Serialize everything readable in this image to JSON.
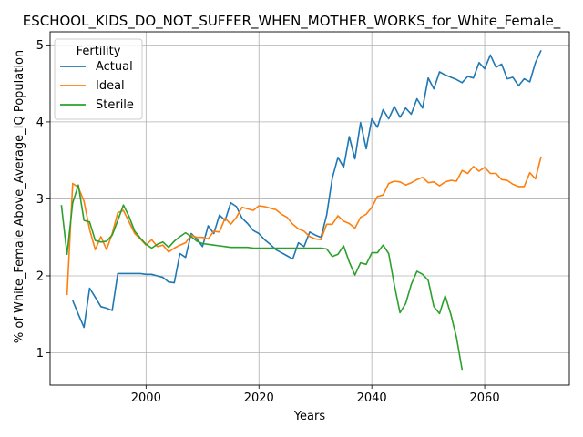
{
  "chart_data": {
    "type": "line",
    "title": "ESCHOOL_KIDS_DO_NOT_SUFFER_WHEN_MOTHER_WORKS_for_White_Female_",
    "xlabel": "Years",
    "ylabel": "% of White_Female Above_Average_IQ Population",
    "xlim": [
      1983,
      2075
    ],
    "ylim": [
      0.58,
      5.17
    ],
    "xticks": [
      2000,
      2020,
      2040,
      2060
    ],
    "yticks": [
      1,
      2,
      3,
      4,
      5
    ],
    "grid": true,
    "legend": {
      "title": "Fertility",
      "placement": "top-left"
    },
    "series": [
      {
        "name": "Actual",
        "color": "#1f77b4",
        "x": [
          1987,
          1988,
          1989,
          1990,
          1991,
          1992,
          1993,
          1994,
          1995,
          1996,
          1997,
          1998,
          1999,
          2000,
          2001,
          2002,
          2003,
          2004,
          2005,
          2006,
          2007,
          2008,
          2009,
          2010,
          2011,
          2012,
          2013,
          2014,
          2015,
          2016,
          2017,
          2018,
          2019,
          2020,
          2021,
          2022,
          2023,
          2024,
          2025,
          2026,
          2027,
          2028,
          2029,
          2030,
          2031,
          2032,
          2033,
          2034,
          2035,
          2036,
          2037,
          2038,
          2039,
          2040,
          2041,
          2042,
          2043,
          2044,
          2045,
          2046,
          2047,
          2048,
          2049,
          2050,
          2051,
          2052,
          2053,
          2054,
          2055,
          2056,
          2057,
          2058,
          2059,
          2060,
          2061,
          2062,
          2063,
          2064,
          2065,
          2066,
          2067,
          2068,
          2069,
          2070
        ],
        "values": [
          1.68,
          1.5,
          1.33,
          1.84,
          1.72,
          1.6,
          1.58,
          1.55,
          2.03,
          2.03,
          2.03,
          2.03,
          2.03,
          2.02,
          2.02,
          2.0,
          1.98,
          1.92,
          1.91,
          2.29,
          2.24,
          2.55,
          2.48,
          2.38,
          2.65,
          2.55,
          2.79,
          2.72,
          2.95,
          2.9,
          2.75,
          2.68,
          2.59,
          2.55,
          2.47,
          2.41,
          2.34,
          2.3,
          2.26,
          2.22,
          2.43,
          2.38,
          2.57,
          2.53,
          2.5,
          2.79,
          3.27,
          3.54,
          3.41,
          3.81,
          3.52,
          3.99,
          3.65,
          4.04,
          3.93,
          4.16,
          4.04,
          4.2,
          4.06,
          4.18,
          4.1,
          4.3,
          4.18,
          4.57,
          4.43,
          4.65,
          4.61,
          4.58,
          4.55,
          4.51,
          4.59,
          4.57,
          4.77,
          4.69,
          4.87,
          4.71,
          4.75,
          4.56,
          4.58,
          4.47,
          4.56,
          4.52,
          4.77,
          4.93
        ]
      },
      {
        "name": "Ideal",
        "color": "#ff7f0e",
        "x": [
          1986,
          1987,
          1988,
          1989,
          1990,
          1991,
          1992,
          1993,
          1994,
          1995,
          1996,
          1997,
          1998,
          1999,
          2000,
          2001,
          2002,
          2003,
          2004,
          2005,
          2006,
          2007,
          2008,
          2009,
          2010,
          2011,
          2012,
          2013,
          2014,
          2015,
          2016,
          2017,
          2018,
          2019,
          2020,
          2021,
          2022,
          2023,
          2024,
          2025,
          2026,
          2027,
          2028,
          2029,
          2030,
          2031,
          2032,
          2033,
          2034,
          2035,
          2036,
          2037,
          2038,
          2039,
          2040,
          2041,
          2042,
          2043,
          2044,
          2045,
          2046,
          2047,
          2048,
          2049,
          2050,
          2051,
          2052,
          2053,
          2054,
          2055,
          2056,
          2057,
          2058,
          2059,
          2060,
          2061,
          2062,
          2063,
          2064,
          2065,
          2066,
          2067,
          2068,
          2069,
          2070
        ],
        "values": [
          1.75,
          3.2,
          3.15,
          2.97,
          2.6,
          2.34,
          2.51,
          2.34,
          2.55,
          2.82,
          2.85,
          2.7,
          2.55,
          2.48,
          2.4,
          2.47,
          2.38,
          2.4,
          2.31,
          2.36,
          2.4,
          2.43,
          2.53,
          2.5,
          2.5,
          2.48,
          2.58,
          2.57,
          2.75,
          2.67,
          2.76,
          2.89,
          2.87,
          2.85,
          2.91,
          2.9,
          2.88,
          2.86,
          2.8,
          2.76,
          2.67,
          2.61,
          2.58,
          2.51,
          2.48,
          2.47,
          2.67,
          2.67,
          2.78,
          2.71,
          2.68,
          2.62,
          2.76,
          2.8,
          2.89,
          3.03,
          3.05,
          3.2,
          3.23,
          3.22,
          3.18,
          3.21,
          3.25,
          3.28,
          3.21,
          3.22,
          3.17,
          3.22,
          3.24,
          3.23,
          3.37,
          3.33,
          3.42,
          3.36,
          3.41,
          3.33,
          3.33,
          3.25,
          3.24,
          3.19,
          3.16,
          3.16,
          3.34,
          3.26,
          3.55
        ]
      },
      {
        "name": "Sterile",
        "color": "#2ca02c",
        "x": [
          1985,
          1986,
          1987,
          1988,
          1989,
          1990,
          1991,
          1992,
          1993,
          1994,
          1995,
          1996,
          1997,
          1998,
          1999,
          2000,
          2001,
          2002,
          2003,
          2004,
          2005,
          2006,
          2007,
          2008,
          2009,
          2010,
          2011,
          2012,
          2013,
          2014,
          2015,
          2016,
          2017,
          2018,
          2019,
          2020,
          2021,
          2022,
          2023,
          2024,
          2025,
          2026,
          2027,
          2028,
          2029,
          2030,
          2031,
          2032,
          2033,
          2034,
          2035,
          2036,
          2037,
          2038,
          2039,
          2040,
          2041,
          2042,
          2043,
          2044,
          2045,
          2046,
          2047,
          2048,
          2049,
          2050,
          2051,
          2052,
          2053,
          2054,
          2055,
          2056
        ],
        "values": [
          2.92,
          2.28,
          2.95,
          3.18,
          2.72,
          2.7,
          2.46,
          2.44,
          2.45,
          2.53,
          2.72,
          2.92,
          2.77,
          2.58,
          2.49,
          2.41,
          2.36,
          2.41,
          2.44,
          2.37,
          2.45,
          2.51,
          2.56,
          2.51,
          2.45,
          2.42,
          2.41,
          2.4,
          2.39,
          2.38,
          2.37,
          2.37,
          2.37,
          2.37,
          2.36,
          2.36,
          2.36,
          2.36,
          2.36,
          2.36,
          2.36,
          2.36,
          2.36,
          2.36,
          2.36,
          2.36,
          2.36,
          2.35,
          2.25,
          2.28,
          2.39,
          2.18,
          2.01,
          2.17,
          2.15,
          2.3,
          2.3,
          2.4,
          2.29,
          1.88,
          1.52,
          1.64,
          1.89,
          2.06,
          2.02,
          1.94,
          1.6,
          1.51,
          1.74,
          1.5,
          1.2,
          0.78
        ]
      }
    ]
  }
}
